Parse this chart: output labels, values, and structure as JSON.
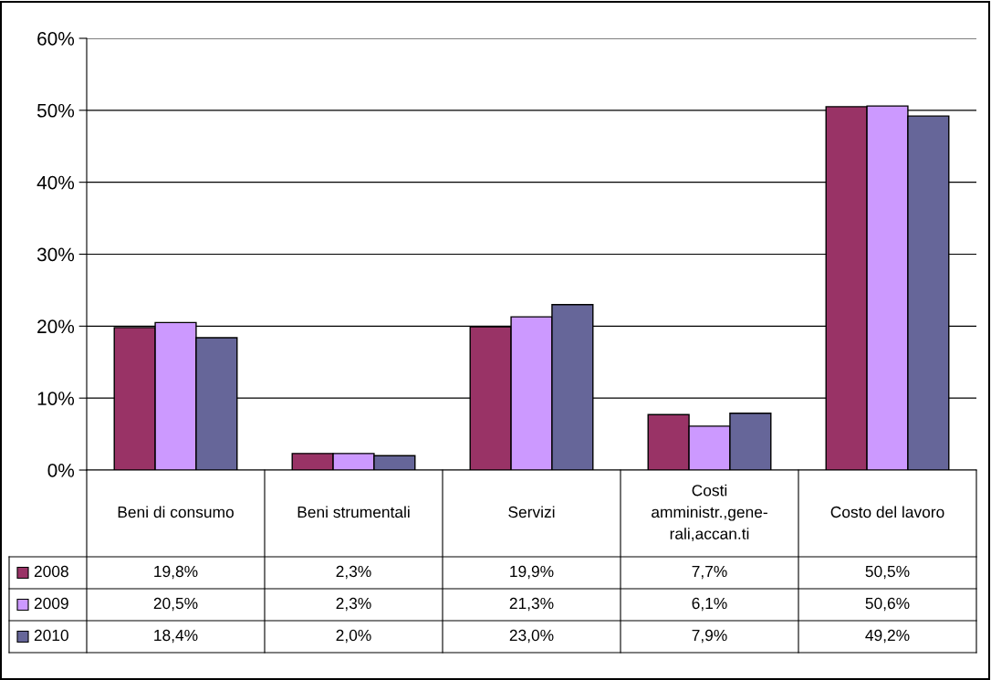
{
  "chart_data": {
    "type": "bar",
    "categories": [
      "Beni di consumo",
      "Beni strumentali",
      "Servizi",
      "Costi\namministr.,gene-\nrali,accan.ti",
      "Costo del lavoro"
    ],
    "series": [
      {
        "name": "2008",
        "color": "#993366",
        "values": [
          19.8,
          2.3,
          19.9,
          7.7,
          50.5
        ],
        "value_labels": [
          "19,8%",
          "2,3%",
          "19,9%",
          "7,7%",
          "50,5%"
        ]
      },
      {
        "name": "2009",
        "color": "#cc99ff",
        "values": [
          20.5,
          2.3,
          21.3,
          6.1,
          50.6
        ],
        "value_labels": [
          "20,5%",
          "2,3%",
          "21,3%",
          "6,1%",
          "50,6%"
        ]
      },
      {
        "name": "2010",
        "color": "#666699",
        "values": [
          18.4,
          2.0,
          23.0,
          7.9,
          49.2
        ],
        "value_labels": [
          "18,4%",
          "2,0%",
          "23,0%",
          "7,9%",
          "49,2%"
        ]
      }
    ],
    "ylim": [
      0,
      60
    ],
    "yticks": [
      {
        "value": 0,
        "label": "0%"
      },
      {
        "value": 10,
        "label": "10%"
      },
      {
        "value": 20,
        "label": "20%"
      },
      {
        "value": 30,
        "label": "30%"
      },
      {
        "value": 40,
        "label": "40%"
      },
      {
        "value": 50,
        "label": "50%"
      },
      {
        "value": 60,
        "label": "60%"
      }
    ],
    "grid": "y",
    "legend": "bottom left"
  }
}
